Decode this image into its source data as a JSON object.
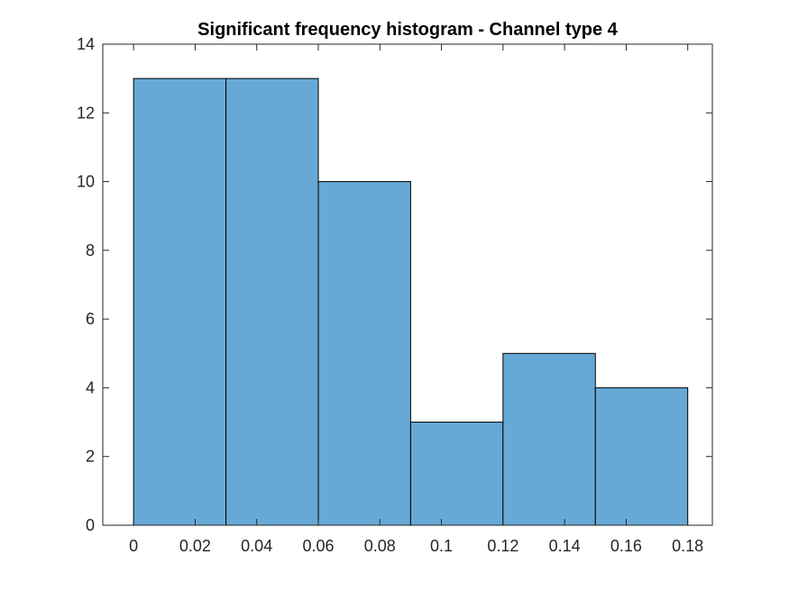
{
  "chart_data": {
    "type": "bar",
    "title": "Significant frequency histogram - Channel type 4",
    "xlabel": "",
    "ylabel": "",
    "bin_edges": [
      0,
      0.03,
      0.06,
      0.09,
      0.12,
      0.15,
      0.18
    ],
    "values": [
      13,
      13,
      10,
      3,
      5,
      4
    ],
    "xlim": [
      -0.01,
      0.188
    ],
    "ylim": [
      0,
      14
    ],
    "x_ticks": [
      0,
      0.02,
      0.04,
      0.06,
      0.08,
      0.1,
      0.12,
      0.14,
      0.16,
      0.18
    ],
    "x_tick_labels": [
      "0",
      "0.02",
      "0.04",
      "0.06",
      "0.08",
      "0.1",
      "0.12",
      "0.14",
      "0.16",
      "0.18"
    ],
    "y_ticks": [
      0,
      2,
      4,
      6,
      8,
      10,
      12,
      14
    ],
    "y_tick_labels": [
      "0",
      "2",
      "4",
      "6",
      "8",
      "10",
      "12",
      "14"
    ],
    "grid": false,
    "legend": "none",
    "colors": {
      "bar_fill": "#66a9d6",
      "bar_edge": "#000000",
      "axis": "#262626",
      "title": "#000000"
    }
  }
}
